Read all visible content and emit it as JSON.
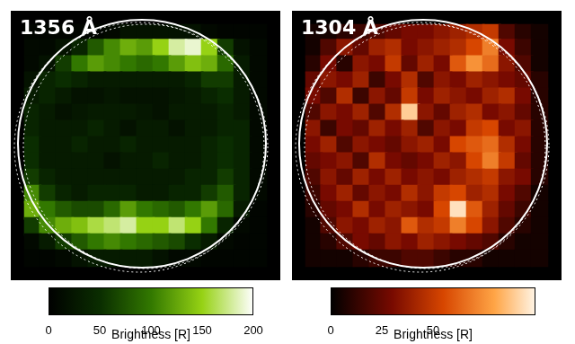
{
  "chart_data": [
    {
      "type": "heatmap",
      "title": "1356 Å",
      "color": "green",
      "grid": false,
      "tick_labels": false,
      "z": [
        [
          5,
          5,
          5,
          5,
          5,
          10,
          20,
          20,
          20,
          20,
          20,
          10,
          5,
          5,
          5
        ],
        [
          10,
          10,
          20,
          40,
          80,
          110,
          130,
          120,
          150,
          180,
          190,
          150,
          60,
          20,
          10
        ],
        [
          10,
          20,
          60,
          100,
          120,
          110,
          100,
          90,
          100,
          120,
          140,
          130,
          90,
          30,
          10
        ],
        [
          20,
          40,
          50,
          40,
          30,
          30,
          30,
          30,
          30,
          30,
          40,
          60,
          60,
          30,
          10
        ],
        [
          30,
          40,
          30,
          20,
          20,
          25,
          20,
          20,
          20,
          25,
          30,
          40,
          50,
          30,
          10
        ],
        [
          40,
          30,
          20,
          25,
          30,
          30,
          30,
          25,
          20,
          30,
          30,
          30,
          40,
          30,
          10
        ],
        [
          40,
          30,
          30,
          30,
          40,
          30,
          20,
          30,
          30,
          20,
          30,
          30,
          40,
          40,
          10
        ],
        [
          50,
          30,
          30,
          40,
          30,
          30,
          40,
          30,
          30,
          30,
          30,
          40,
          50,
          40,
          10
        ],
        [
          50,
          30,
          30,
          30,
          30,
          20,
          30,
          30,
          40,
          30,
          30,
          40,
          50,
          40,
          10
        ],
        [
          60,
          40,
          30,
          30,
          30,
          30,
          30,
          30,
          30,
          30,
          40,
          40,
          60,
          40,
          10
        ],
        [
          110,
          60,
          40,
          30,
          40,
          40,
          40,
          30,
          30,
          40,
          40,
          60,
          80,
          40,
          10
        ],
        [
          130,
          100,
          80,
          70,
          70,
          90,
          120,
          100,
          90,
          80,
          100,
          120,
          90,
          30,
          5
        ],
        [
          60,
          110,
          130,
          140,
          160,
          170,
          180,
          150,
          150,
          170,
          150,
          100,
          40,
          10,
          5
        ],
        [
          10,
          30,
          60,
          80,
          100,
          110,
          100,
          90,
          80,
          70,
          50,
          30,
          10,
          5,
          5
        ],
        [
          5,
          5,
          10,
          20,
          30,
          30,
          30,
          30,
          20,
          10,
          10,
          5,
          5,
          5,
          5
        ]
      ],
      "colorbar": {
        "range": [
          0,
          200
        ],
        "ticks": [
          0,
          50,
          100,
          150,
          200
        ],
        "label": "Brightness [R]"
      }
    },
    {
      "type": "heatmap",
      "title": "1304 Å",
      "color": "red",
      "grid": false,
      "tick_labels": false,
      "z": [
        [
          5,
          5,
          10,
          15,
          20,
          25,
          30,
          30,
          35,
          40,
          45,
          50,
          20,
          10,
          5
        ],
        [
          5,
          20,
          35,
          25,
          40,
          45,
          30,
          35,
          40,
          45,
          55,
          70,
          30,
          15,
          5
        ],
        [
          10,
          30,
          10,
          35,
          30,
          50,
          25,
          40,
          30,
          60,
          75,
          65,
          35,
          20,
          5
        ],
        [
          25,
          35,
          30,
          40,
          15,
          30,
          45,
          20,
          35,
          30,
          40,
          35,
          30,
          25,
          10
        ],
        [
          30,
          20,
          45,
          15,
          35,
          25,
          50,
          30,
          40,
          35,
          30,
          40,
          45,
          30,
          10
        ],
        [
          20,
          35,
          30,
          40,
          20,
          45,
          90,
          35,
          25,
          40,
          45,
          30,
          35,
          25,
          10
        ],
        [
          35,
          15,
          30,
          25,
          40,
          30,
          40,
          20,
          35,
          30,
          50,
          55,
          30,
          35,
          10
        ],
        [
          30,
          40,
          20,
          35,
          30,
          25,
          35,
          40,
          30,
          55,
          60,
          65,
          45,
          30,
          10
        ],
        [
          25,
          30,
          35,
          20,
          45,
          30,
          25,
          30,
          40,
          35,
          55,
          70,
          50,
          25,
          10
        ],
        [
          20,
          35,
          25,
          40,
          30,
          40,
          30,
          35,
          30,
          40,
          45,
          50,
          35,
          30,
          10
        ],
        [
          15,
          30,
          40,
          25,
          35,
          30,
          45,
          35,
          50,
          55,
          40,
          45,
          30,
          20,
          5
        ],
        [
          10,
          25,
          30,
          45,
          30,
          40,
          35,
          30,
          55,
          95,
          60,
          40,
          25,
          15,
          5
        ],
        [
          5,
          20,
          35,
          30,
          40,
          35,
          60,
          45,
          50,
          70,
          55,
          35,
          20,
          10,
          5
        ],
        [
          5,
          10,
          20,
          30,
          25,
          35,
          30,
          40,
          35,
          30,
          25,
          20,
          10,
          5,
          5
        ],
        [
          5,
          5,
          5,
          10,
          15,
          15,
          20,
          20,
          15,
          10,
          10,
          5,
          5,
          5,
          5
        ]
      ],
      "colorbar": {
        "range": [
          0,
          100
        ],
        "ticks": [
          0,
          25,
          50
        ],
        "label": "Brightness [R]"
      }
    }
  ]
}
